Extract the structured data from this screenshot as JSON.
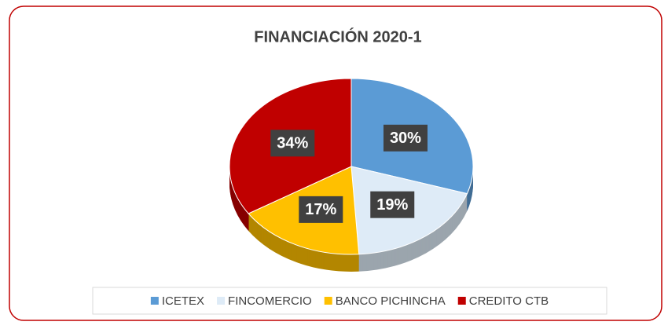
{
  "chart_data": {
    "type": "pie",
    "title": "FINANCIACIÓN 2020-1",
    "categories": [
      "ICETEX",
      "FINCOMERCIO",
      "BANCO PICHINCHA",
      "CREDITO CTB"
    ],
    "values": [
      30,
      19,
      17,
      34
    ],
    "value_labels": [
      "30%",
      "19%",
      "17%",
      "34%"
    ],
    "colors": [
      "#5b9bd5",
      "#deebf7",
      "#ffc000",
      "#c00000"
    ],
    "legend": "bottom"
  }
}
